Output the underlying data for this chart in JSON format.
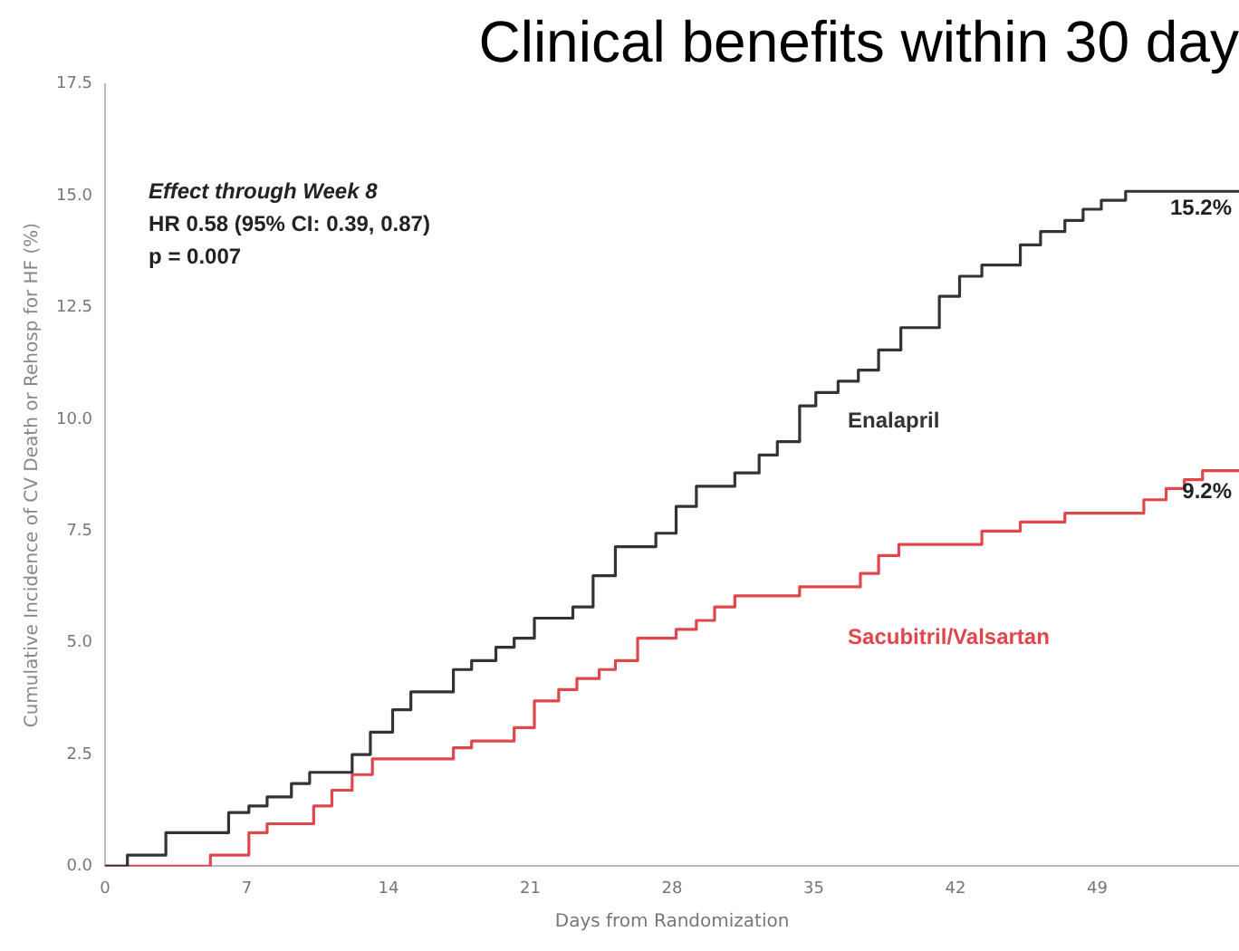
{
  "chart_data": {
    "type": "step",
    "title": "Clinical benefits within 30 day",
    "xlabel": "Days from Randomization",
    "ylabel": "Cumulative Incidence of CV Death or Rehosp for HF (%)",
    "xlim": [
      0,
      56
    ],
    "xticks": [
      0,
      7,
      14,
      21,
      28,
      35,
      42,
      49
    ],
    "ylim": [
      0,
      17.5
    ],
    "yticks": [
      {
        "value": 0,
        "label": "0.0"
      },
      {
        "value": 2.5,
        "label": "2.5"
      },
      {
        "value": 5,
        "label": "5.0"
      },
      {
        "value": 7.5,
        "label": "7.5"
      },
      {
        "value": 10,
        "label": "10.0"
      },
      {
        "value": 12.5,
        "label": "12.5"
      },
      {
        "value": 15,
        "label": "15.0"
      },
      {
        "value": 17.5,
        "label": "17.5"
      }
    ],
    "grid": false,
    "legend": false,
    "series": [
      {
        "name": "Enalapril",
        "color": "#333333",
        "x": [
          0,
          1.1,
          3,
          6.1,
          7.1,
          8,
          9.2,
          10.1,
          12.2,
          13.1,
          14.2,
          15.1,
          17.2,
          18.1,
          19.3,
          20.2,
          21.2,
          23.1,
          24.1,
          25.2,
          27.2,
          28.2,
          29.2,
          31.1,
          32.3,
          33.2,
          34.3,
          35.1,
          36.2,
          37.2,
          38.2,
          39.3,
          41.2,
          42.2,
          43.3,
          45.2,
          46.2,
          47.4,
          48.3,
          49.2,
          50.4,
          56
        ],
        "values": [
          0,
          0.25,
          0.75,
          1.2,
          1.35,
          1.55,
          1.85,
          2.1,
          2.5,
          3,
          3.5,
          3.9,
          4.4,
          4.6,
          4.9,
          5.1,
          5.55,
          5.8,
          6.5,
          7.15,
          7.45,
          8.05,
          8.5,
          8.8,
          9.2,
          9.5,
          10.3,
          10.6,
          10.85,
          11.1,
          11.55,
          12.05,
          12.75,
          13.2,
          13.45,
          13.9,
          14.2,
          14.45,
          14.7,
          14.9,
          15.1,
          15.1
        ]
      },
      {
        "name": "Sacubitril/Valsartan",
        "color": "#e0474c",
        "x": [
          0,
          5.2,
          7.1,
          8,
          10.3,
          11.2,
          12.2,
          13.2,
          17.2,
          18.1,
          20.2,
          21.2,
          22.4,
          23.3,
          24.4,
          25.2,
          26.3,
          28.2,
          29.2,
          30.1,
          31.1,
          34.3,
          37.3,
          38.2,
          39.2,
          43.3,
          45.2,
          47.4,
          51.3,
          52.4,
          53.3,
          54.2,
          56
        ],
        "values": [
          0,
          0.25,
          0.75,
          0.95,
          1.35,
          1.7,
          2.05,
          2.4,
          2.65,
          2.8,
          3.1,
          3.7,
          3.95,
          4.2,
          4.4,
          4.6,
          5.1,
          5.3,
          5.5,
          5.8,
          6.05,
          6.25,
          6.55,
          6.95,
          7.2,
          7.5,
          7.7,
          7.9,
          8.2,
          8.45,
          8.65,
          8.85,
          8.85
        ]
      }
    ],
    "annotations": [
      "Effect through Week 8",
      "HR 0.58 (95% CI: 0.39, 0.87)",
      "p = 0.007",
      {
        "text": "15.2%",
        "x": 56,
        "y": 15.2
      },
      {
        "text": "9.2%",
        "x": 56,
        "y": 8.85
      }
    ]
  }
}
